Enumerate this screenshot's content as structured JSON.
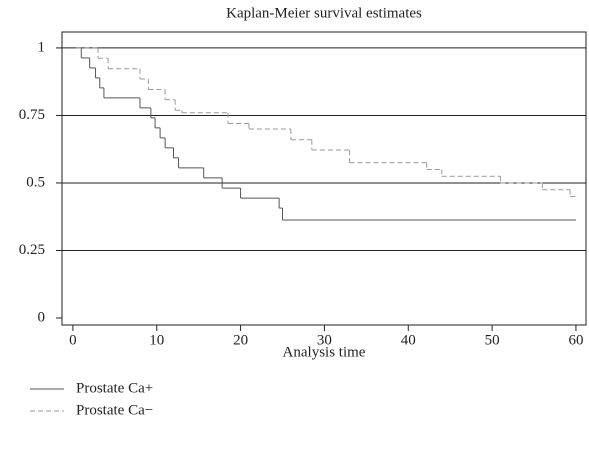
{
  "chart_data": {
    "type": "step",
    "title": "Kaplan-Meier survival estimates",
    "x_label": "Analysis time",
    "xlim": [
      -1.3,
      61.2
    ],
    "xticks": [
      0,
      10,
      20,
      30,
      40,
      50,
      60
    ],
    "ylim": [
      -0.026,
      1.059
    ],
    "yticks": [
      0,
      0.25,
      0.5,
      0.75,
      1
    ],
    "grid": true,
    "legend_position": "bottom",
    "series": [
      {
        "name": "Prostate Ca+",
        "color": "#555555",
        "line_style": "solid",
        "x": [
          0.4,
          1,
          2,
          2.7,
          3.2,
          3.7,
          8,
          9.3,
          9.8,
          10.4,
          11,
          12,
          12.6,
          15.6,
          17.8,
          20,
          24.6,
          25,
          60
        ],
        "values": [
          1,
          0.963,
          0.926,
          0.889,
          0.852,
          0.815,
          0.778,
          0.741,
          0.704,
          0.667,
          0.63,
          0.593,
          0.556,
          0.519,
          0.481,
          0.444,
          0.407,
          0.363,
          0.363
        ]
      },
      {
        "name": "Prostate Ca−",
        "color": "#9a9a9a",
        "line_style": "dashed",
        "x": [
          0.4,
          3,
          4.2,
          8,
          9,
          11,
          12.2,
          13,
          18.5,
          21,
          26,
          28.5,
          33,
          42.2,
          44,
          51,
          56,
          59.3,
          60
        ],
        "values": [
          1,
          0.962,
          0.923,
          0.885,
          0.846,
          0.808,
          0.769,
          0.76,
          0.72,
          0.7,
          0.66,
          0.622,
          0.575,
          0.55,
          0.525,
          0.5,
          0.475,
          0.45,
          0.45
        ]
      }
    ]
  }
}
